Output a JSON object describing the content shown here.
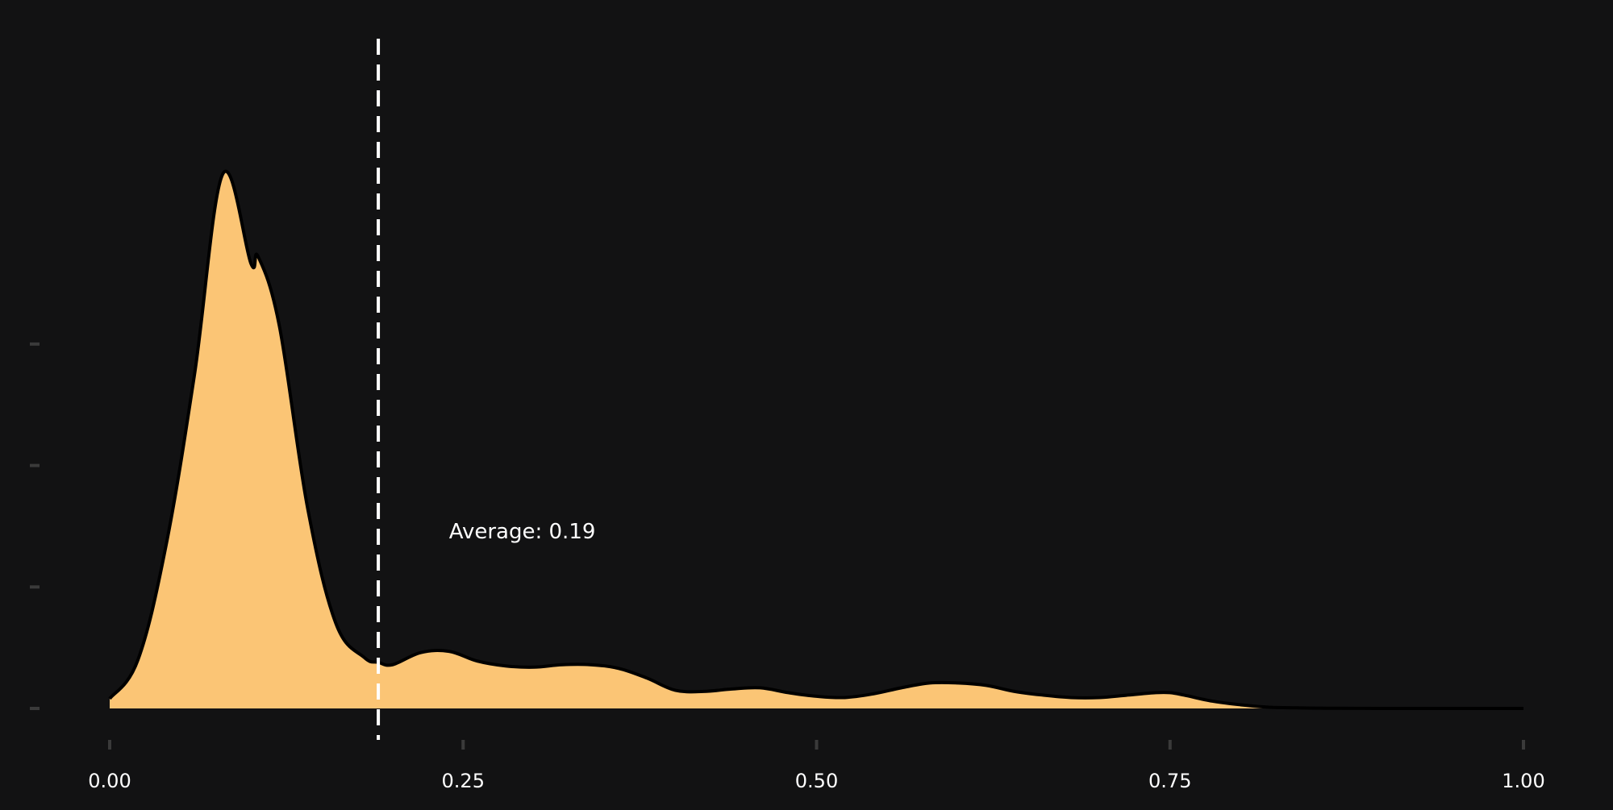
{
  "chart_data": {
    "type": "area",
    "title": "",
    "xlabel": "",
    "ylabel": "",
    "xlim": [
      0,
      1
    ],
    "ylim": [
      0,
      5.6
    ],
    "grid": false,
    "x_ticks": [
      0,
      0.25,
      0.5,
      0.75,
      1.0
    ],
    "x_tick_labels": [
      "0.00",
      "0.25",
      "0.50",
      "0.75",
      "1.00"
    ],
    "y_ticks": [
      0,
      1,
      2,
      3
    ],
    "y_tick_labels": [
      "",
      "",
      "",
      ""
    ],
    "series": [
      {
        "x": [
          0.0,
          0.02,
          0.04,
          0.06,
          0.08,
          0.1,
          0.105,
          0.12,
          0.14,
          0.16,
          0.18,
          0.19,
          0.2,
          0.22,
          0.24,
          0.26,
          0.28,
          0.3,
          0.32,
          0.34,
          0.36,
          0.38,
          0.4,
          0.42,
          0.44,
          0.46,
          0.48,
          0.5,
          0.52,
          0.54,
          0.56,
          0.58,
          0.6,
          0.62,
          0.64,
          0.66,
          0.68,
          0.7,
          0.72,
          0.74,
          0.75,
          0.76,
          0.78,
          0.8,
          0.82,
          0.84,
          0.86,
          0.9,
          0.95,
          1.0
        ],
        "y": [
          0.08,
          0.4,
          1.35,
          2.75,
          4.4,
          3.66,
          3.72,
          3.15,
          1.65,
          0.7,
          0.42,
          0.38,
          0.36,
          0.46,
          0.47,
          0.39,
          0.35,
          0.34,
          0.36,
          0.36,
          0.33,
          0.25,
          0.15,
          0.14,
          0.16,
          0.17,
          0.13,
          0.1,
          0.09,
          0.12,
          0.17,
          0.21,
          0.21,
          0.19,
          0.14,
          0.11,
          0.09,
          0.09,
          0.11,
          0.13,
          0.13,
          0.11,
          0.06,
          0.03,
          0.01,
          0.005,
          0.002,
          0.0,
          0.0,
          0.0
        ],
        "fill_color": "#FBC575",
        "line_color": "#000000"
      }
    ],
    "reference_line": {
      "x": 0.19,
      "style": "dashed",
      "color": "#FFFFFF"
    },
    "annotation": {
      "text": "Average: 0.19",
      "x": 0.24,
      "y": 1.4
    },
    "colors": {
      "background": "#121213",
      "axis_tick": "#3A3A3A",
      "tick_label": "#FFFFFF"
    }
  }
}
